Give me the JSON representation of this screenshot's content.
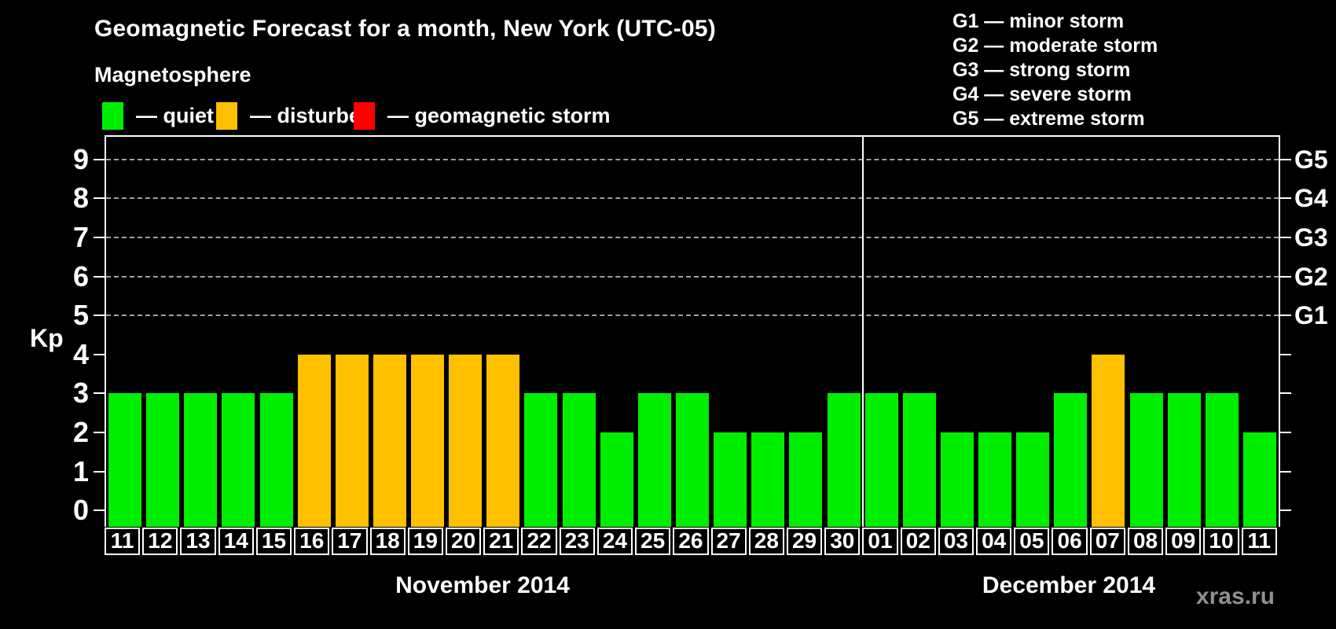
{
  "title": "Geomagnetic Forecast for a month, New York (UTC-05)",
  "legend": {
    "heading": "Magnetosphere",
    "items": [
      {
        "label": "— quiet",
        "color": "#00ee00"
      },
      {
        "label": "— disturbed",
        "color": "#ffc000"
      },
      {
        "label": "— geomagnetic storm",
        "color": "#ff0000"
      }
    ]
  },
  "storm_scale_legend": [
    "G1 — minor storm",
    "G2 — moderate storm",
    "G3 — strong storm",
    "G4 — severe storm",
    "G5 — extreme storm"
  ],
  "watermark": "xras.ru",
  "chart_data": {
    "type": "bar",
    "ylabel": "Kp",
    "ylim": [
      0,
      9
    ],
    "yticks": [
      0,
      1,
      2,
      3,
      4,
      5,
      6,
      7,
      8,
      9
    ],
    "grid_levels": [
      5,
      6,
      7,
      8,
      9
    ],
    "g_scale": [
      {
        "level": 5,
        "label": "G1"
      },
      {
        "level": 6,
        "label": "G2"
      },
      {
        "level": 7,
        "label": "G3"
      },
      {
        "level": 8,
        "label": "G4"
      },
      {
        "level": 9,
        "label": "G5"
      }
    ],
    "colors": {
      "quiet": "#00ee00",
      "disturbed": "#ffc000",
      "storm": "#ff0000"
    },
    "thresholds": {
      "quiet_max": 3,
      "disturbed_max": 4
    },
    "grid": "dashed-horizontal",
    "legend_position": "top",
    "months": [
      {
        "label": "November 2014",
        "days": [
          "11",
          "12",
          "13",
          "14",
          "15",
          "16",
          "17",
          "18",
          "19",
          "20",
          "21",
          "22",
          "23",
          "24",
          "25",
          "26",
          "27",
          "28",
          "29",
          "30"
        ],
        "values": [
          3,
          3,
          3,
          3,
          3,
          4,
          4,
          4,
          4,
          4,
          4,
          3,
          3,
          2,
          3,
          3,
          2,
          2,
          2,
          3
        ]
      },
      {
        "label": "December 2014",
        "days": [
          "01",
          "02",
          "03",
          "04",
          "05",
          "06",
          "07",
          "08",
          "09",
          "10",
          "11"
        ],
        "values": [
          3,
          3,
          2,
          2,
          2,
          3,
          4,
          3,
          3,
          3,
          2
        ]
      }
    ]
  }
}
